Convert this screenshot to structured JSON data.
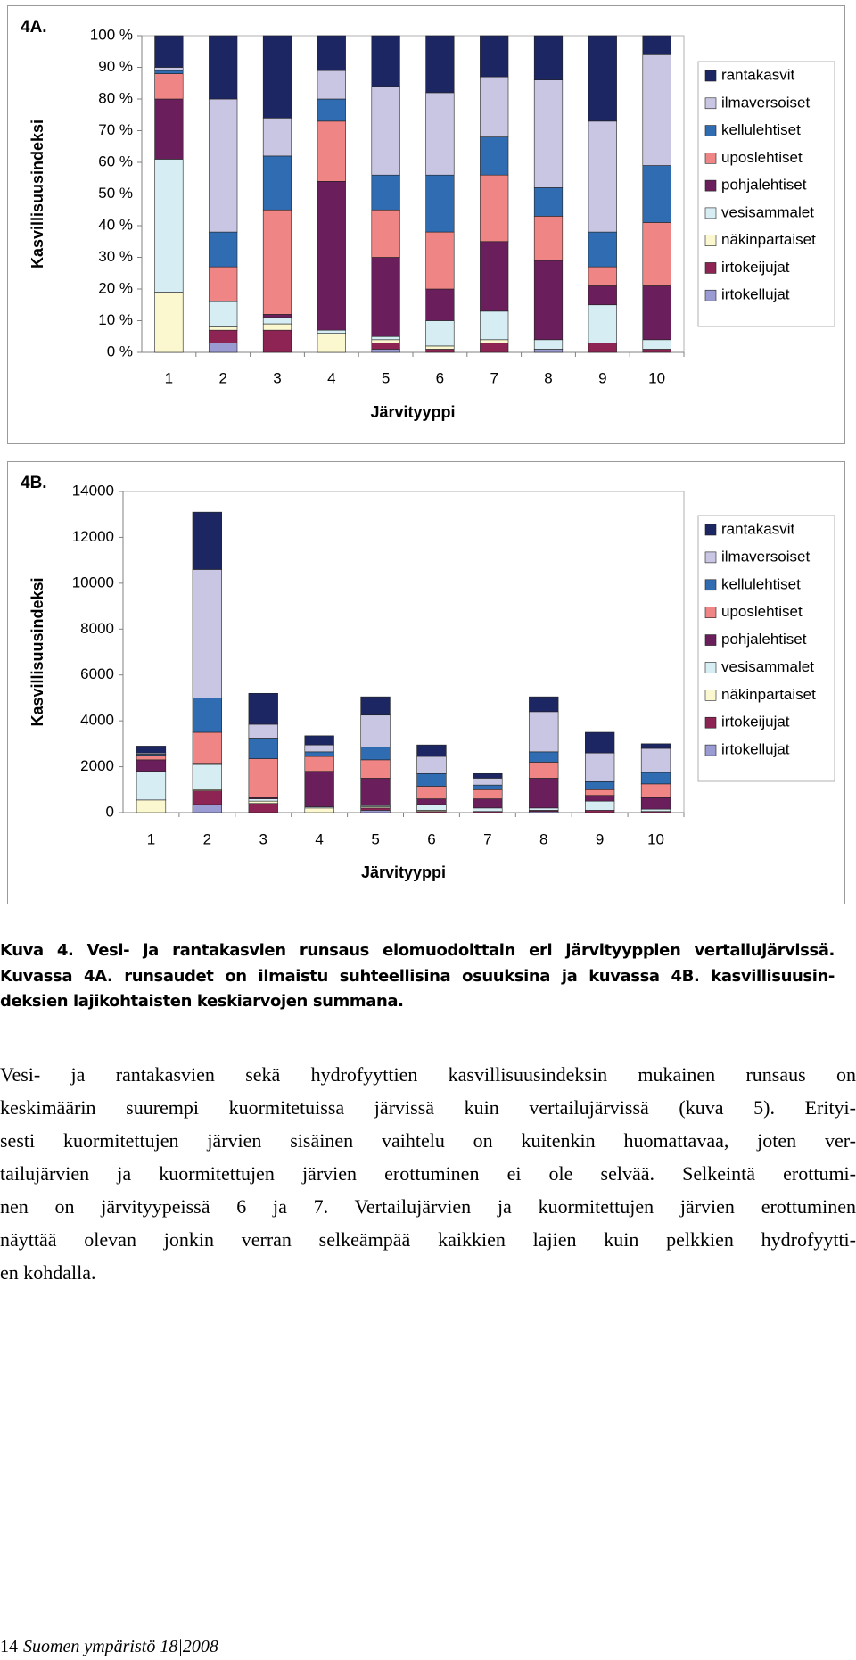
{
  "chart_data": [
    {
      "type": "bar",
      "stacked": true,
      "label": "4A.",
      "x_label": "Järvityyppi",
      "y_label": "Kasvillisuusindeksi",
      "categories": [
        "1",
        "2",
        "3",
        "4",
        "5",
        "6",
        "7",
        "8",
        "9",
        "10"
      ],
      "ylim": [
        0,
        100
      ],
      "yticks": [
        {
          "value": 0,
          "label": "0 %"
        },
        {
          "value": 10,
          "label": "10 %"
        },
        {
          "value": 20,
          "label": "20 %"
        },
        {
          "value": 30,
          "label": "30 %"
        },
        {
          "value": 40,
          "label": "40 %"
        },
        {
          "value": 50,
          "label": "50 %"
        },
        {
          "value": 60,
          "label": "60 %"
        },
        {
          "value": 70,
          "label": "70 %"
        },
        {
          "value": 80,
          "label": "80 %"
        },
        {
          "value": 90,
          "label": "90 %"
        },
        {
          "value": 100,
          "label": "100 %"
        }
      ],
      "grid": false,
      "legend": "right",
      "series": [
        {
          "name": "irtokellujat",
          "color": "#9b9bd3",
          "values": [
            0,
            3,
            0,
            0,
            1,
            0,
            0,
            1,
            0,
            0
          ]
        },
        {
          "name": "irtokeijujat",
          "color": "#8e2454",
          "values": [
            0,
            4,
            7,
            0,
            2,
            1,
            3,
            0,
            3,
            1
          ]
        },
        {
          "name": "näkinpartaiset",
          "color": "#fbf8d0",
          "values": [
            19,
            1,
            2,
            6,
            1,
            1,
            1,
            0,
            0,
            0
          ]
        },
        {
          "name": "vesisammalet",
          "color": "#d6edf3",
          "values": [
            42,
            8,
            2,
            1,
            1,
            8,
            9,
            3,
            12,
            3
          ]
        },
        {
          "name": "pohjalehtiset",
          "color": "#6a1f5c",
          "values": [
            19,
            0,
            1,
            47,
            25,
            10,
            22,
            25,
            6,
            17
          ]
        },
        {
          "name": "uposlehtiset",
          "color": "#ef8585",
          "values": [
            8,
            11,
            33,
            19,
            15,
            18,
            21,
            14,
            6,
            20
          ]
        },
        {
          "name": "kellulehtiset",
          "color": "#2f6cb2",
          "values": [
            1,
            11,
            17,
            7,
            11,
            18,
            12,
            9,
            11,
            18
          ]
        },
        {
          "name": "ilmaversoiset",
          "color": "#c9c6e3",
          "values": [
            1,
            42,
            12,
            9,
            28,
            26,
            19,
            34,
            35,
            35
          ]
        },
        {
          "name": "rantakasvit",
          "color": "#1c2663",
          "values": [
            10,
            20,
            26,
            11,
            16,
            18,
            13,
            14,
            27,
            6
          ]
        }
      ]
    },
    {
      "type": "bar",
      "stacked": true,
      "label": "4B.",
      "x_label": "Järvityyppi",
      "y_label": "Kasvillisuusindeksi",
      "categories": [
        "1",
        "2",
        "3",
        "4",
        "5",
        "6",
        "7",
        "8",
        "9",
        "10"
      ],
      "ylim": [
        0,
        14000
      ],
      "yticks": [
        0,
        2000,
        4000,
        6000,
        8000,
        10000,
        12000,
        14000
      ],
      "grid": false,
      "legend": "right",
      "series": [
        {
          "name": "irtokellujat",
          "color": "#9b9bd3",
          "values": [
            0,
            350,
            0,
            0,
            100,
            0,
            0,
            50,
            0,
            0
          ]
        },
        {
          "name": "irtokeijujat",
          "color": "#8e2454",
          "values": [
            0,
            600,
            400,
            0,
            100,
            50,
            50,
            50,
            100,
            50
          ]
        },
        {
          "name": "näkinpartaiset",
          "color": "#fbf8d0",
          "values": [
            550,
            50,
            100,
            200,
            50,
            50,
            0,
            0,
            0,
            0
          ]
        },
        {
          "name": "vesisammalet",
          "color": "#d6edf3",
          "values": [
            1250,
            1100,
            100,
            50,
            50,
            250,
            150,
            100,
            400,
            100
          ]
        },
        {
          "name": "pohjalehtiset",
          "color": "#6a1f5c",
          "values": [
            500,
            50,
            50,
            1550,
            1200,
            250,
            400,
            1300,
            250,
            500
          ]
        },
        {
          "name": "uposlehtiset",
          "color": "#ef8585",
          "values": [
            200,
            1350,
            1700,
            650,
            800,
            550,
            400,
            700,
            250,
            600
          ]
        },
        {
          "name": "kellulehtiset",
          "color": "#2f6cb2",
          "values": [
            50,
            1500,
            900,
            200,
            550,
            550,
            200,
            450,
            350,
            500
          ]
        },
        {
          "name": "ilmaversoiset",
          "color": "#c9c6e3",
          "values": [
            50,
            5600,
            600,
            300,
            1400,
            750,
            300,
            1750,
            1250,
            1050
          ]
        },
        {
          "name": "rantakasvit",
          "color": "#1c2663",
          "values": [
            300,
            2500,
            1350,
            400,
            800,
            500,
            200,
            650,
            900,
            200
          ]
        }
      ]
    }
  ],
  "caption": [
    "Kuva 4. Vesi- ja rantakasvien runsaus elomuodoittain eri järvityyppien vertailujärvissä.",
    "Kuvassa 4A. runsaudet on ilmaistu suhteellisina osuuksina ja kuvassa 4B. kasvillisuusin-",
    "deksien lajikohtaisten keskiarvojen summana."
  ],
  "paragraph": [
    "Vesi- ja rantakasvien sekä hydrofyyttien kasvillisuusindeksin mukainen runsaus on",
    "keskimäärin suurempi kuormitetuissa järvissä kuin vertailujärvissä (kuva 5). Erityi-",
    "sesti kuormitettujen järvien sisäinen vaihtelu on kuitenkin huomattavaa, joten ver-",
    "tailujärvien ja kuormitettujen järvien erottuminen ei ole selvää. Selkeintä erottumi-",
    "nen on järvityypeissä 6 ja 7. Vertailujärvien ja kuormitettujen järvien erottuminen",
    "näyttää olevan jonkin verran selkeämpää kaikkien lajien kuin pelkkien hydrofyytti-",
    "en kohdalla."
  ],
  "footer": {
    "page_number": "14",
    "publication": "Suomen ympäristö 18|2008"
  }
}
